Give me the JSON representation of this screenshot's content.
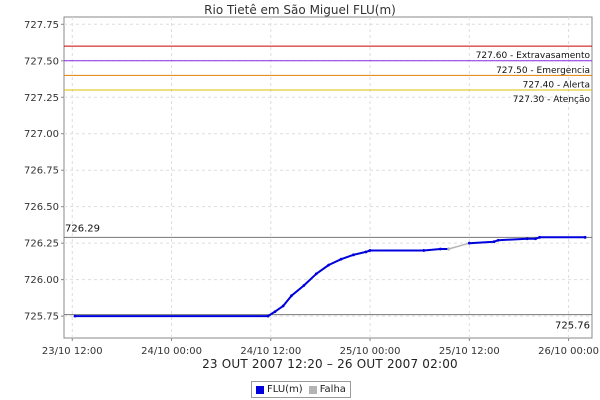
{
  "chart_data": {
    "type": "line",
    "title": "Rio Tietê em São Miguel FLU(m)",
    "xlabel": "23 OUT 2007 12:20 – 26 OUT 2007 02:00",
    "ylabel": "",
    "ylim": [
      725.6,
      727.8
    ],
    "xlim": [
      "2007-10-23 11:00",
      "2007-10-26 02:50"
    ],
    "yticks": [
      "725.75",
      "726.00",
      "726.25",
      "726.50",
      "726.75",
      "727.00",
      "727.25",
      "727.50",
      "727.75"
    ],
    "ytick_values": [
      725.75,
      726.0,
      726.25,
      726.5,
      726.75,
      727.0,
      727.25,
      727.5,
      727.75
    ],
    "xticks": [
      "23/10 12:00",
      "24/10 00:00",
      "24/10 12:00",
      "25/10 00:00",
      "25/10 12:00",
      "26/10 00:00"
    ],
    "xtick_values": [
      "2007-10-23 12:00",
      "2007-10-24 00:00",
      "2007-10-24 12:00",
      "2007-10-25 00:00",
      "2007-10-25 12:00",
      "2007-10-26 00:00"
    ],
    "grid": true,
    "legend_position": "bottom-center",
    "series": [
      {
        "name": "FLU(m)",
        "color": "#0000dd",
        "points": [
          [
            "2007-10-23 12:20",
            725.75
          ],
          [
            "2007-10-24 11:40",
            725.75
          ],
          [
            "2007-10-24 12:30",
            725.78
          ],
          [
            "2007-10-24 13:30",
            725.82
          ],
          [
            "2007-10-24 14:30",
            725.89
          ],
          [
            "2007-10-24 16:00",
            725.96
          ],
          [
            "2007-10-24 17:30",
            726.04
          ],
          [
            "2007-10-24 19:00",
            726.1
          ],
          [
            "2007-10-24 20:30",
            726.14
          ],
          [
            "2007-10-24 22:00",
            726.17
          ],
          [
            "2007-10-24 23:30",
            726.19
          ],
          [
            "2007-10-25 00:00",
            726.2
          ],
          [
            "2007-10-25 06:30",
            726.2
          ],
          [
            "2007-10-25 08:30",
            726.21
          ],
          [
            "2007-10-25 09:30",
            726.21
          ]
        ]
      },
      {
        "name": "Falha",
        "color": "#b4b4b4",
        "points": [
          [
            "2007-10-25 09:30",
            726.21
          ],
          [
            "2007-10-25 12:00",
            726.25
          ]
        ]
      },
      {
        "name": "FLU(m)",
        "color": "#0000dd",
        "points": [
          [
            "2007-10-25 12:00",
            726.25
          ],
          [
            "2007-10-25 15:00",
            726.26
          ],
          [
            "2007-10-25 15:30",
            726.27
          ],
          [
            "2007-10-25 19:00",
            726.28
          ],
          [
            "2007-10-25 20:00",
            726.28
          ],
          [
            "2007-10-25 20:30",
            726.29
          ],
          [
            "2007-10-26 02:00",
            726.29
          ]
        ]
      }
    ],
    "thresholds": [
      {
        "label": "727.60 - Extravasamento",
        "value": 727.6,
        "color": "#cc0000"
      },
      {
        "label": "727.50 - Emergencia",
        "value": 727.5,
        "color": "#8a2be2"
      },
      {
        "label": "727.40 - Alerta",
        "value": 727.4,
        "color": "#e08000"
      },
      {
        "label": "727.30 - Atenção",
        "value": 727.3,
        "color": "#d8c000"
      }
    ],
    "reference_lines": [
      {
        "label": "726.29",
        "value": 726.29,
        "label_side": "left"
      },
      {
        "label": "725.76",
        "value": 725.76,
        "label_side": "right"
      }
    ],
    "legend": [
      {
        "name": "FLU(m)",
        "color": "#0000dd"
      },
      {
        "name": "Falha",
        "color": "#b4b4b4"
      }
    ]
  }
}
